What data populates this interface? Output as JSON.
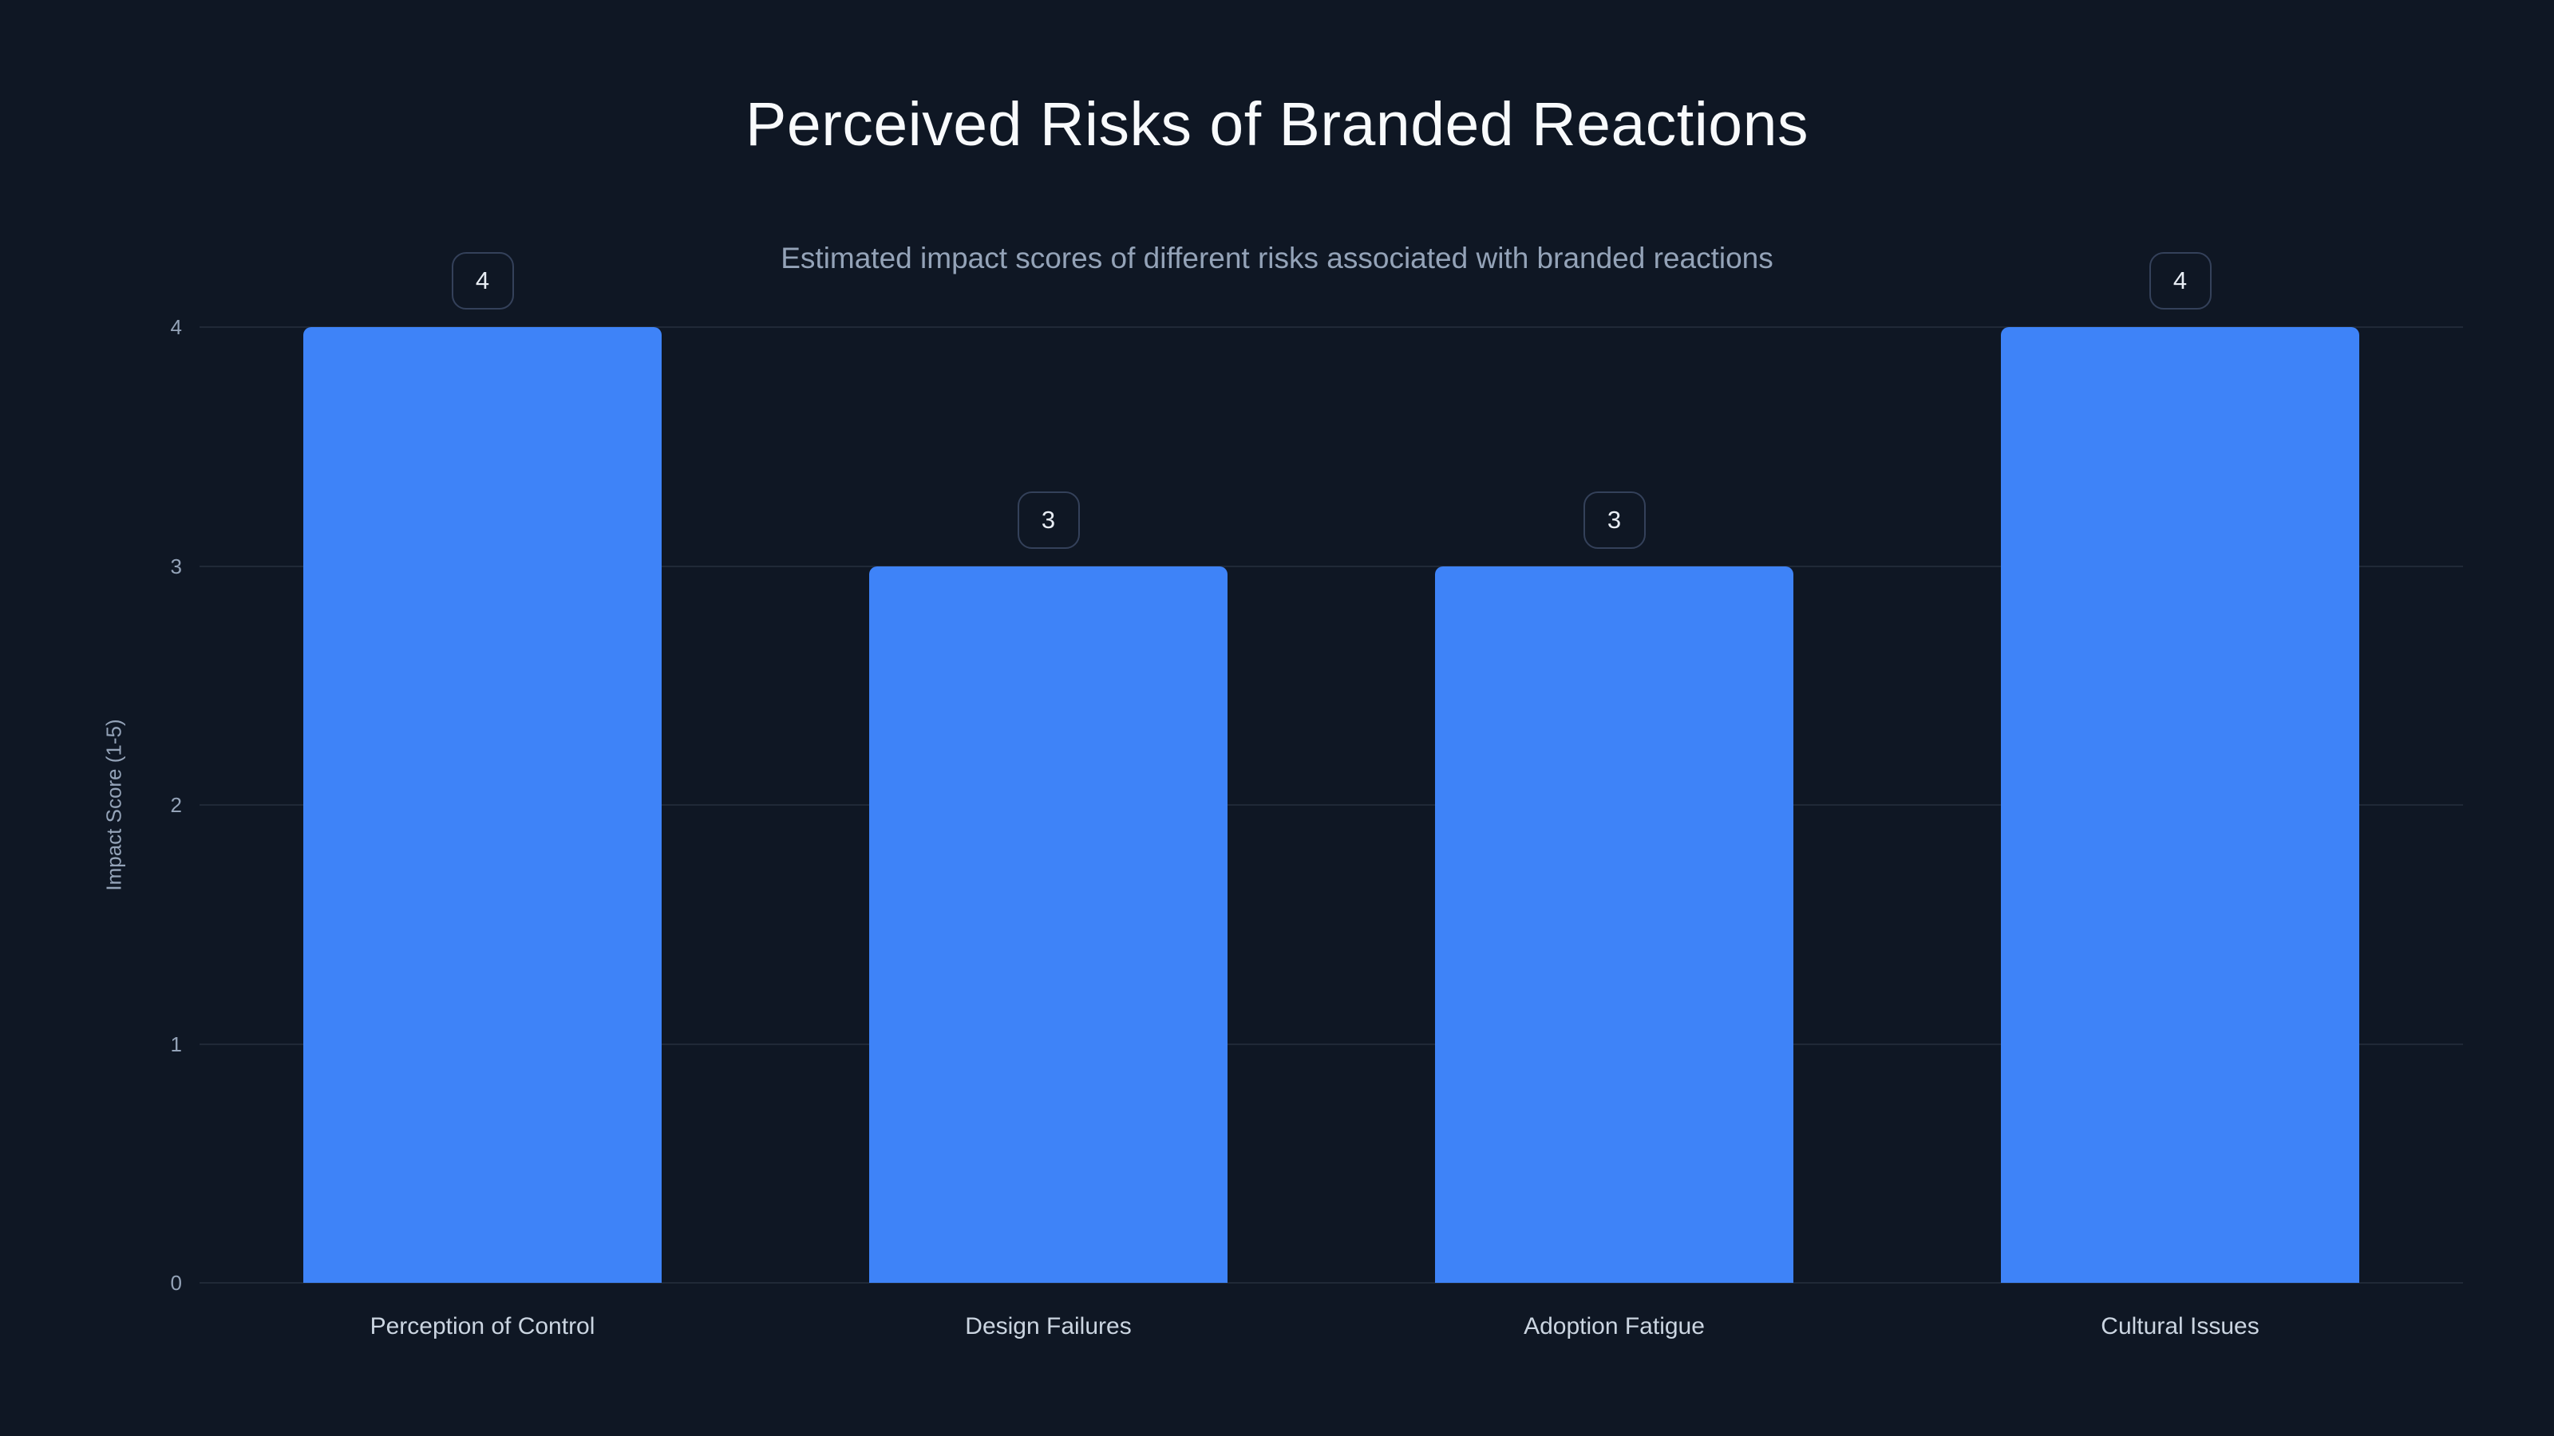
{
  "chart_data": {
    "type": "bar",
    "title": "Perceived Risks of Branded Reactions",
    "subtitle": "Estimated impact scores of different risks associated with branded reactions",
    "categories": [
      "Perception of Control",
      "Design Failures",
      "Adoption Fatigue",
      "Cultural Issues"
    ],
    "values": [
      4,
      3,
      3,
      4
    ],
    "xlabel": "",
    "ylabel": "Impact Score (1-5)",
    "ylim": [
      0,
      4
    ],
    "yticks": [
      0,
      1,
      2,
      3,
      4
    ],
    "grid": true,
    "legend_position": "none",
    "colors": {
      "background": "#0f1724",
      "bar": "#3e83f8",
      "grid": "rgba(148,163,184,0.13)",
      "title": "#f8fafc",
      "subtitle": "#94a3b8",
      "tick": "#94a3b8",
      "category": "#cbd5e1",
      "badge_border": "#34415a",
      "badge_text": "#e8edf4"
    }
  }
}
